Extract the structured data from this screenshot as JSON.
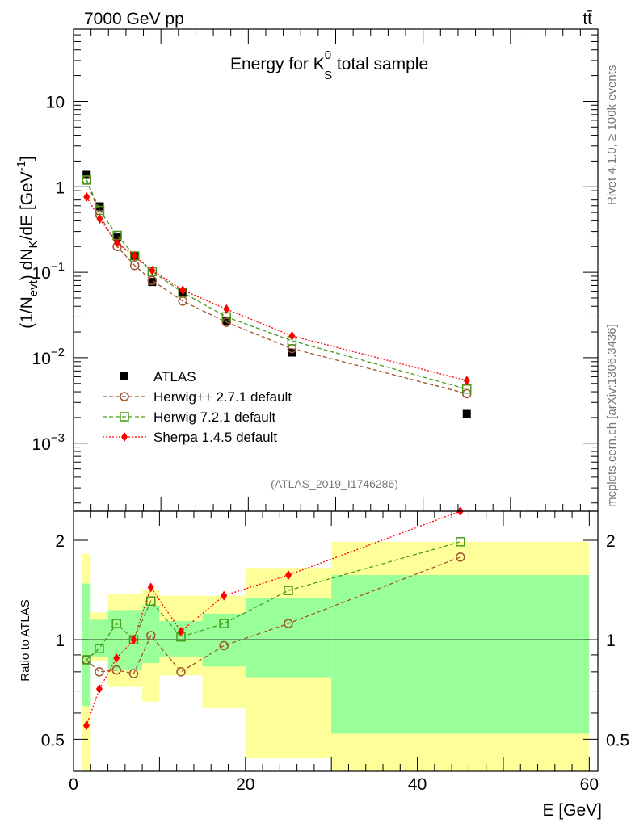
{
  "header": {
    "left": "7000 GeV pp",
    "right": "tt̄"
  },
  "side_texts": {
    "rivet": "Rivet 4.1.0, ≥ 100k events",
    "mcplots": "mcplots.cern.ch [arXiv:1306.3436]"
  },
  "analysis_id": "(ATLAS_2019_I1746286)",
  "chart_data": [
    {
      "type": "scatter",
      "id": "main",
      "title": "Energy for K⁰S total sample",
      "title_parts": {
        "pre": "Energy for K",
        "sup": "0",
        "sub": "S",
        "post": " total sample"
      },
      "ylabel_parts": {
        "a": "(1/N",
        "a_sub": "evt",
        "b": ") dN",
        "b_sub": "K",
        "c": "/dE [GeV",
        "c_sup": "-1",
        "d": "]"
      },
      "yscale": "log",
      "ylim": [
        0.00016,
        70
      ],
      "xlim": [
        0,
        60
      ],
      "ytick_labels": [
        {
          "value": 10,
          "text": "10"
        },
        {
          "value": 1,
          "text": "1"
        },
        {
          "value": 0.1,
          "base": "10",
          "exp": "−1"
        },
        {
          "value": 0.01,
          "base": "10",
          "exp": "−2"
        },
        {
          "value": 0.001,
          "base": "10",
          "exp": "−3"
        }
      ],
      "legend_position": "lower-left",
      "series": [
        {
          "name": "ATLAS",
          "label": "ATLAS",
          "color": "#000000",
          "marker": "square-filled",
          "line": "none",
          "x": [
            1.5,
            3,
            5,
            7,
            9,
            12.5,
            17.5,
            25,
            45
          ],
          "y": [
            1.38,
            0.59,
            0.255,
            0.155,
            0.077,
            0.057,
            0.027,
            0.0115,
            0.0022
          ]
        },
        {
          "name": "Herwig++ 2.7.1 default",
          "label": "Herwig++ 2.7.1 default",
          "color": "#a0522d",
          "marker": "circle-open",
          "line": "dashed",
          "x": [
            1.5,
            3,
            5,
            7,
            9,
            12.5,
            17.5,
            25,
            45
          ],
          "y": [
            1.2,
            0.47,
            0.2,
            0.12,
            0.08,
            0.046,
            0.026,
            0.0128,
            0.0038
          ]
        },
        {
          "name": "Herwig 7.2.1 default",
          "label": "Herwig 7.2.1 default",
          "color": "#4a9a1a",
          "marker": "square-open",
          "line": "dashed",
          "x": [
            1.5,
            3,
            5,
            7,
            9,
            12.5,
            17.5,
            25,
            45
          ],
          "y": [
            1.2,
            0.53,
            0.27,
            0.155,
            0.102,
            0.058,
            0.03,
            0.0158,
            0.0043
          ]
        },
        {
          "name": "Sherpa 1.4.5 default",
          "label": "Sherpa 1.4.5 default",
          "color": "#ff0000",
          "marker": "diamond-filled",
          "line": "dotted",
          "x": [
            1.5,
            3,
            5,
            7,
            9,
            12.5,
            17.5,
            25,
            45
          ],
          "y": [
            0.76,
            0.42,
            0.22,
            0.155,
            0.105,
            0.062,
            0.037,
            0.018,
            0.0054
          ]
        }
      ]
    },
    {
      "type": "scatter",
      "id": "ratio",
      "title": "",
      "ylabel": "Ratio to ATLAS",
      "xlabel": "E [GeV]",
      "yscale": "log",
      "ylim": [
        0.4,
        2.45
      ],
      "xlim": [
        0,
        61
      ],
      "xtick_labels": [
        {
          "value": 0,
          "text": "0"
        },
        {
          "value": 20,
          "text": "20"
        },
        {
          "value": 40,
          "text": "40"
        },
        {
          "value": 60,
          "text": "60"
        }
      ],
      "ytick_labels": [
        {
          "value": 2,
          "text": "2"
        },
        {
          "value": 1,
          "text": "1"
        },
        {
          "value": 0.5,
          "text": "0.5"
        }
      ],
      "reference_line": 1,
      "uncertainty_bands": [
        {
          "x0": 1,
          "x1": 2,
          "yellow": [
            0.37,
            1.82
          ],
          "green": [
            0.63,
            1.48
          ]
        },
        {
          "x0": 2,
          "x1": 4,
          "yellow": [
            0.86,
            1.21
          ],
          "green": [
            0.89,
            1.15
          ]
        },
        {
          "x0": 4,
          "x1": 6,
          "yellow": [
            0.72,
            1.38
          ],
          "green": [
            0.81,
            1.23
          ]
        },
        {
          "x0": 6,
          "x1": 8,
          "yellow": [
            0.72,
            1.38
          ],
          "green": [
            0.81,
            1.23
          ]
        },
        {
          "x0": 8,
          "x1": 10,
          "yellow": [
            0.65,
            1.42
          ],
          "green": [
            0.85,
            1.27
          ]
        },
        {
          "x0": 10,
          "x1": 15,
          "yellow": [
            0.78,
            1.36
          ],
          "green": [
            0.89,
            1.14
          ]
        },
        {
          "x0": 15,
          "x1": 20,
          "yellow": [
            0.62,
            1.36
          ],
          "green": [
            0.83,
            1.2
          ]
        },
        {
          "x0": 20,
          "x1": 30,
          "yellow": [
            0.44,
            1.65
          ],
          "green": [
            0.77,
            1.34
          ]
        },
        {
          "x0": 30,
          "x1": 60,
          "yellow": [
            0.33,
            1.98
          ],
          "green": [
            0.52,
            1.57
          ]
        }
      ],
      "series": [
        {
          "name": "Herwig++ 2.7.1 default",
          "color": "#a0522d",
          "marker": "circle-open",
          "line": "dashed",
          "x": [
            1.5,
            3,
            5,
            7,
            9,
            12.5,
            17.5,
            25,
            45
          ],
          "y": [
            0.87,
            0.8,
            0.81,
            0.79,
            1.03,
            0.8,
            0.96,
            1.12,
            1.78
          ]
        },
        {
          "name": "Herwig 7.2.1 default",
          "color": "#4a9a1a",
          "marker": "square-open",
          "line": "dashed",
          "x": [
            1.5,
            3,
            5,
            7,
            9,
            12.5,
            17.5,
            25,
            45
          ],
          "y": [
            0.87,
            0.94,
            1.12,
            1.0,
            1.31,
            1.02,
            1.12,
            1.41,
            1.98
          ]
        },
        {
          "name": "Sherpa 1.4.5 default",
          "color": "#ff0000",
          "marker": "diamond-filled",
          "line": "dotted",
          "x": [
            1.5,
            3,
            5,
            7,
            9,
            12.5,
            17.5,
            25,
            45
          ],
          "y": [
            0.55,
            0.71,
            0.88,
            1.0,
            1.44,
            1.06,
            1.36,
            1.57,
            2.45
          ]
        }
      ]
    }
  ]
}
